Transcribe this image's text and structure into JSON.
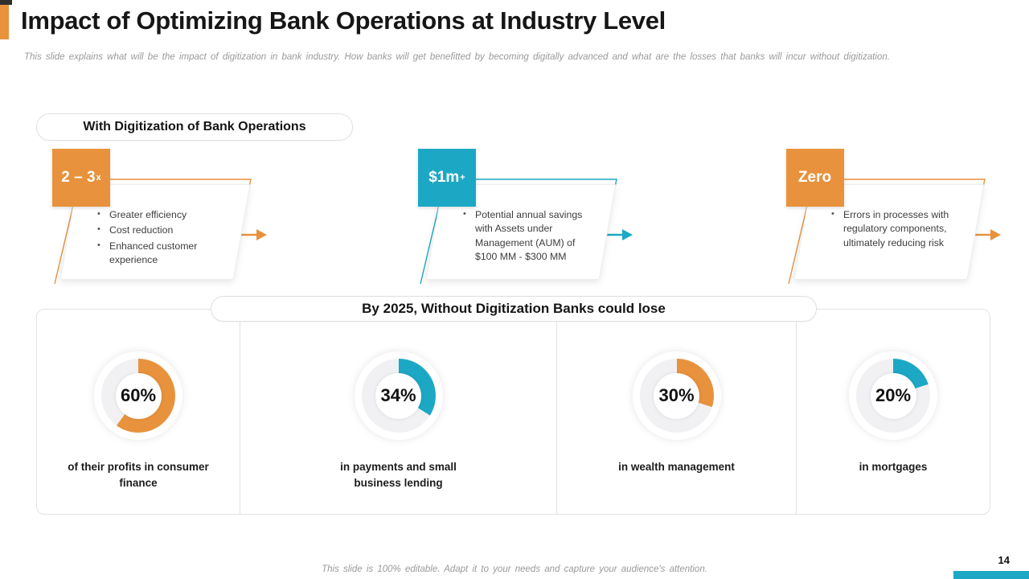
{
  "slide": {
    "title": "Impact of Optimizing Bank Operations at Industry Level",
    "subtitle": "This slide explains what will be the impact of digitization in bank industry. How banks will get benefitted by becoming digitally advanced and what are the losses that banks will incur without digitization.",
    "footer_note": "This slide is 100% editable. Adapt it to your needs and capture your audience's attention.",
    "page_number": "14"
  },
  "colors": {
    "orange": "#E8923D",
    "teal": "#1CA8C5",
    "donut_track": "#F1F1F4",
    "dark_mark": "#2F2F2F"
  },
  "with_digitization": {
    "label": "With Digitization of Bank Operations",
    "callouts": [
      {
        "badge": "2 – 3",
        "badge_sup": "x",
        "accent": "#E8923D",
        "bullets": [
          "Greater efficiency",
          "Cost reduction",
          "Enhanced customer experience"
        ]
      },
      {
        "badge": "$1m",
        "badge_sup": "+",
        "accent": "#1CA8C5",
        "bullets": [
          "Potential annual savings with Assets under Management (AUM) of $100 MM - $300 MM"
        ]
      },
      {
        "badge": "Zero",
        "badge_sup": "",
        "accent": "#E8923D",
        "bullets": [
          "Errors in processes with regulatory components, ultimately reducing risk"
        ]
      }
    ]
  },
  "without_digitization": {
    "label": "By 2025, Without Digitization Banks could lose"
  },
  "chart_data": {
    "type": "pie",
    "subtype": "donut",
    "title": "By 2025, Without Digitization Banks could lose",
    "start_angle": "12-oclock",
    "direction": "clockwise",
    "track_color": "#F1F1F4",
    "legend_position": "none",
    "charts": [
      {
        "value": 60,
        "value_label": "60%",
        "label": "of their profits in consumer finance",
        "color": "#E8923D"
      },
      {
        "value": 34,
        "value_label": "34%",
        "label": "in payments and small business lending",
        "color": "#1CA8C5"
      },
      {
        "value": 30,
        "value_label": "30%",
        "label": "in wealth management",
        "color": "#E8923D"
      },
      {
        "value": 20,
        "value_label": "20%",
        "label": "in mortgages",
        "color": "#1CA8C5"
      }
    ]
  }
}
